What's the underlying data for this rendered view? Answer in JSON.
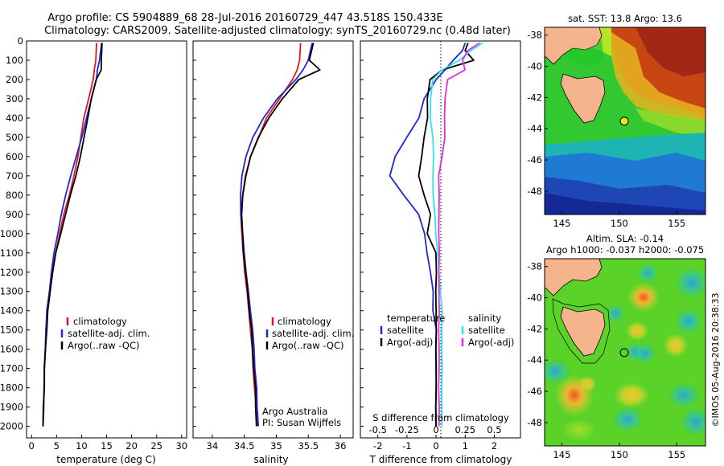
{
  "header": {
    "line1": "Argo profile: CS 5904889_68 28-Jul-2016 20160729_447 43.518S 150.433E",
    "line2": "Climatology: CARS2009. Satellite-adjusted climatology: synTS_20160729.nc (0.48d later)"
  },
  "colors": {
    "climatology": "#e8141e",
    "satellite": "#1e28d2",
    "argo": "#000000",
    "sat_salinity": "#2ee6e6",
    "argo_adj_salinity": "#e628e6",
    "land": "#f5b48c"
  },
  "chart_data": [
    {
      "id": "temperature",
      "type": "line",
      "xlabel": "temperature (deg C)",
      "ylabel": "",
      "xlim": [
        -1,
        31
      ],
      "ylim": [
        2060,
        0
      ],
      "xticks": [
        0,
        5,
        10,
        15,
        20,
        25,
        30
      ],
      "yticks": [
        0,
        100,
        200,
        300,
        400,
        500,
        600,
        700,
        800,
        900,
        1000,
        1100,
        1200,
        1300,
        1400,
        1500,
        1600,
        1700,
        1800,
        1900,
        2000
      ],
      "legend": [
        "climatology",
        "satellite-adj. clim.",
        "Argo(..raw -QC)"
      ],
      "legend_position": "lower-middle",
      "series": [
        {
          "name": "climatology",
          "color": "climatology",
          "depth": [
            10,
            100,
            150,
            200,
            300,
            400,
            500,
            600,
            700,
            800,
            900,
            1000,
            1100,
            1200,
            1300,
            1400,
            1500,
            1600,
            1700,
            1800,
            1900,
            2000
          ],
          "values": [
            13.0,
            12.8,
            12.6,
            12.3,
            11.4,
            10.5,
            9.8,
            9.3,
            8.5,
            7.5,
            6.5,
            5.6,
            4.8,
            4.1,
            3.6,
            3.2,
            2.9,
            2.7,
            2.6,
            2.5,
            2.4,
            2.3
          ]
        },
        {
          "name": "satellite-adj. clim.",
          "color": "satellite",
          "depth": [
            10,
            100,
            150,
            200,
            300,
            400,
            500,
            600,
            700,
            800,
            900,
            1000,
            1100,
            1200,
            1300,
            1400,
            1500,
            1600,
            1700,
            1800,
            1900,
            2000
          ],
          "values": [
            14.0,
            13.6,
            13.2,
            12.9,
            12.0,
            11.0,
            10.0,
            9.0,
            7.8,
            6.8,
            6.0,
            5.2,
            4.5,
            4.0,
            3.5,
            3.1,
            2.9,
            2.7,
            2.6,
            2.5,
            2.4,
            2.3
          ]
        },
        {
          "name": "Argo(..raw -QC)",
          "color": "argo",
          "depth": [
            10,
            100,
            150,
            200,
            300,
            400,
            500,
            600,
            700,
            800,
            900,
            1000,
            1100,
            1200,
            1300,
            1400,
            1500,
            1600,
            1700,
            1800,
            1900,
            2000
          ],
          "values": [
            14.1,
            14.0,
            13.9,
            12.9,
            12.0,
            11.2,
            10.5,
            9.8,
            8.8,
            7.8,
            6.8,
            5.8,
            4.9,
            4.2,
            3.7,
            3.3,
            3.0,
            2.8,
            2.6,
            2.5,
            2.4,
            2.3
          ]
        }
      ]
    },
    {
      "id": "salinity",
      "type": "line",
      "xlabel": "salinity",
      "ylabel": "",
      "xlim": [
        33.7,
        36.2
      ],
      "ylim": [
        2060,
        0
      ],
      "xticks": [
        34,
        34.5,
        35,
        35.5,
        36
      ],
      "legend": [
        "climatology",
        "satellite-adj. clim.",
        "Argo(..raw -QC)"
      ],
      "legend_position": "lower-right",
      "annotation": {
        "line1": "Argo Australia",
        "line2": "PI: Susan Wijffels"
      },
      "series": [
        {
          "name": "climatology",
          "color": "climatology",
          "depth": [
            10,
            100,
            150,
            200,
            300,
            400,
            500,
            600,
            700,
            800,
            900,
            1000,
            1100,
            1200,
            1300,
            1400,
            1500,
            1600,
            1700,
            1800,
            1900,
            2000
          ],
          "values": [
            35.38,
            35.36,
            35.33,
            35.25,
            35.05,
            34.85,
            34.72,
            34.6,
            34.52,
            34.47,
            34.45,
            34.46,
            34.48,
            34.51,
            34.54,
            34.57,
            34.6,
            34.62,
            34.64,
            34.66,
            34.68,
            34.7
          ]
        },
        {
          "name": "satellite-adj. clim.",
          "color": "satellite",
          "depth": [
            10,
            100,
            150,
            200,
            300,
            400,
            500,
            600,
            700,
            800,
            900,
            1000,
            1100,
            1200,
            1300,
            1400,
            1500,
            1600,
            1700,
            1800,
            1900,
            2000
          ],
          "values": [
            35.56,
            35.5,
            35.42,
            35.3,
            35.02,
            34.8,
            34.63,
            34.53,
            34.46,
            34.44,
            34.45,
            34.47,
            34.5,
            34.53,
            34.56,
            34.6,
            34.63,
            34.65,
            34.67,
            34.69,
            34.7,
            34.72
          ]
        },
        {
          "name": "Argo(..raw -QC)",
          "color": "argo",
          "depth": [
            10,
            100,
            150,
            200,
            300,
            400,
            500,
            600,
            700,
            800,
            900,
            1000,
            1100,
            1200,
            1300,
            1400,
            1500,
            1600,
            1700,
            1800,
            1900,
            2000
          ],
          "values": [
            35.58,
            35.52,
            35.68,
            35.35,
            35.1,
            34.88,
            34.72,
            34.6,
            34.52,
            34.48,
            34.46,
            34.47,
            34.49,
            34.52,
            34.55,
            34.58,
            34.61,
            34.63,
            34.65,
            34.67,
            34.68,
            34.69
          ]
        }
      ]
    },
    {
      "id": "difference",
      "type": "line",
      "xlabel": "T difference from climatology",
      "xlabel_top": "S difference from climatology",
      "ylabel": "",
      "xlim": [
        -2.6,
        2.9
      ],
      "ylim": [
        2060,
        0
      ],
      "xticks": [
        -2,
        -1,
        0,
        1,
        2
      ],
      "xticks_top": [
        "-0.5",
        "-0.25",
        "0",
        "0.25",
        "0.5"
      ],
      "xticks_top_pos": [
        -2,
        -1,
        0,
        1,
        2
      ],
      "legend_left": {
        "title": "temperature",
        "items": [
          "satellite",
          "Argo(-adj)"
        ]
      },
      "legend_right": {
        "title": "salinity",
        "items": [
          "satellite",
          "Argo(-adj)"
        ]
      },
      "series": [
        {
          "name": "temperature satellite",
          "color": "satellite",
          "depth": [
            10,
            50,
            100,
            150,
            200,
            300,
            400,
            500,
            600,
            700,
            800,
            900,
            1000,
            1100,
            1200,
            1300,
            1400,
            1500,
            1600,
            1700,
            1800,
            1900,
            2000
          ],
          "values": [
            1.0,
            0.9,
            0.6,
            0.3,
            0.0,
            -0.4,
            -0.6,
            -1.0,
            -1.4,
            -1.6,
            -1.1,
            -0.6,
            -0.4,
            -0.3,
            -0.2,
            -0.1,
            -0.1,
            0.0,
            0.0,
            0.0,
            0.0,
            0.0,
            0.0
          ]
        },
        {
          "name": "temperature Argo(-adj)",
          "color": "argo",
          "depth": [
            10,
            50,
            100,
            150,
            200,
            300,
            400,
            500,
            600,
            700,
            800,
            900,
            1000,
            1100,
            1200,
            1300,
            1400,
            1500,
            1600,
            1700,
            1800,
            1900,
            2000
          ],
          "values": [
            1.1,
            1.0,
            1.3,
            0.2,
            -0.2,
            -0.3,
            -0.3,
            -0.4,
            -0.5,
            -0.6,
            -0.4,
            -0.2,
            -0.3,
            0.0,
            0.0,
            0.0,
            0.0,
            0.0,
            0.0,
            0.0,
            0.0,
            0.0,
            0.0
          ]
        },
        {
          "name": "salinity satellite",
          "color": "sat_salinity",
          "depth": [
            10,
            50,
            100,
            150,
            200,
            300,
            400,
            500,
            600,
            700,
            800,
            900,
            1000,
            1100,
            1200,
            1300,
            1400,
            1500,
            1600,
            1700,
            1800,
            1900,
            2000
          ],
          "values": [
            1.6,
            1.2,
            0.8,
            0.2,
            -0.1,
            -0.2,
            -0.2,
            -0.1,
            -0.1,
            -0.1,
            -0.1,
            -0.05,
            0.0,
            0.05,
            0.1,
            0.15,
            0.2,
            0.2,
            0.2,
            0.2,
            0.2,
            0.2,
            0.2
          ]
        },
        {
          "name": "salinity Argo(-adj)",
          "color": "argo_adj_salinity",
          "depth": [
            10,
            50,
            100,
            150,
            200,
            300,
            400,
            500,
            600,
            700,
            800,
            900,
            1000,
            1100,
            1200,
            1300,
            1400,
            1500,
            1600,
            1700,
            1800,
            1900,
            2000
          ],
          "values": [
            1.5,
            1.1,
            0.9,
            1.0,
            0.4,
            0.3,
            0.3,
            0.3,
            0.2,
            0.1,
            0.1,
            0.1,
            0.1,
            0.1,
            0.1,
            0.1,
            0.1,
            0.1,
            0.1,
            0.1,
            0.1,
            0.1,
            0.1
          ]
        }
      ]
    },
    {
      "id": "sst-map",
      "type": "heatmap",
      "title": "sat. SST: 13.8 Argo: 13.6",
      "xticks": [
        145,
        150,
        155
      ],
      "yticks": [
        -38,
        -40,
        -42,
        -44,
        -46,
        -48
      ],
      "xlim": [
        143.5,
        157.5
      ],
      "ylim": [
        -49.5,
        -37.5
      ],
      "marker": {
        "lon": 150.433,
        "lat": -43.518
      }
    },
    {
      "id": "sla-map",
      "type": "heatmap",
      "title": "Altim. SLA: -0.14",
      "subtitle": "Argo h1000: -0.037 h2000: -0.075",
      "xticks": [
        145,
        150,
        155
      ],
      "yticks": [
        -38,
        -40,
        -42,
        -44,
        -46,
        -48
      ],
      "xlim": [
        143.5,
        157.5
      ],
      "ylim": [
        -49.5,
        -37.5
      ],
      "marker": {
        "lon": 150.433,
        "lat": -43.518
      }
    }
  ],
  "footer": {
    "imos_stamp": "©IMOS 05-Aug-2016 20:38:33"
  }
}
